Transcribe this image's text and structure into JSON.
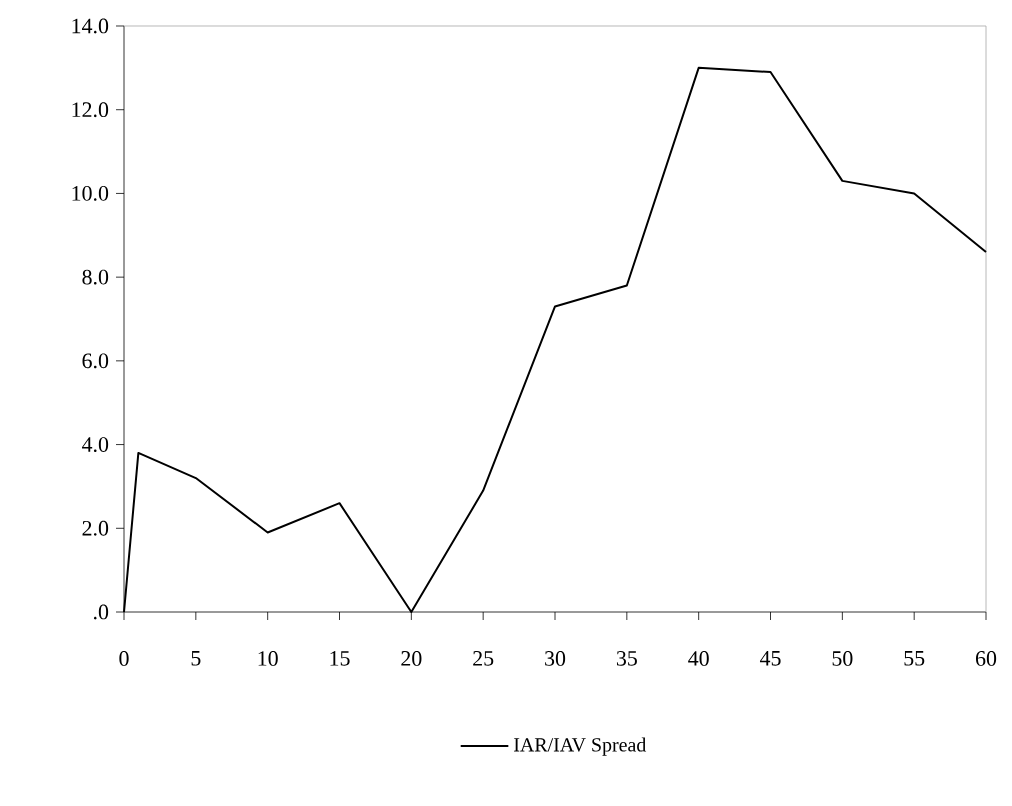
{
  "chart_data": {
    "type": "line",
    "x": [
      0,
      1,
      5,
      10,
      15,
      20,
      25,
      30,
      35,
      40,
      45,
      50,
      55,
      60
    ],
    "series": [
      {
        "name": "IAR/IAV Spread",
        "color": "#000000",
        "values": [
          0,
          3.8,
          3.2,
          1.9,
          2.6,
          0,
          2.9,
          7.3,
          7.8,
          13.0,
          12.9,
          10.3,
          10.0,
          8.6
        ]
      }
    ],
    "xlim": [
      0,
      60
    ],
    "xticks": [
      0,
      5,
      10,
      15,
      20,
      25,
      30,
      35,
      40,
      45,
      50,
      55,
      60
    ],
    "ylim": [
      0,
      14
    ],
    "yticks": [
      {
        "value": 0,
        "label": ".0"
      },
      {
        "value": 2,
        "label": "2.0"
      },
      {
        "value": 4,
        "label": "4.0"
      },
      {
        "value": 6,
        "label": "6.0"
      },
      {
        "value": 8,
        "label": "8.0"
      },
      {
        "value": 10,
        "label": "10.0"
      },
      {
        "value": 12,
        "label": "12.0"
      },
      {
        "value": 14,
        "label": "14.0"
      }
    ],
    "legend": "bottom",
    "grid": false,
    "marker": "none",
    "line_style": "solid"
  }
}
